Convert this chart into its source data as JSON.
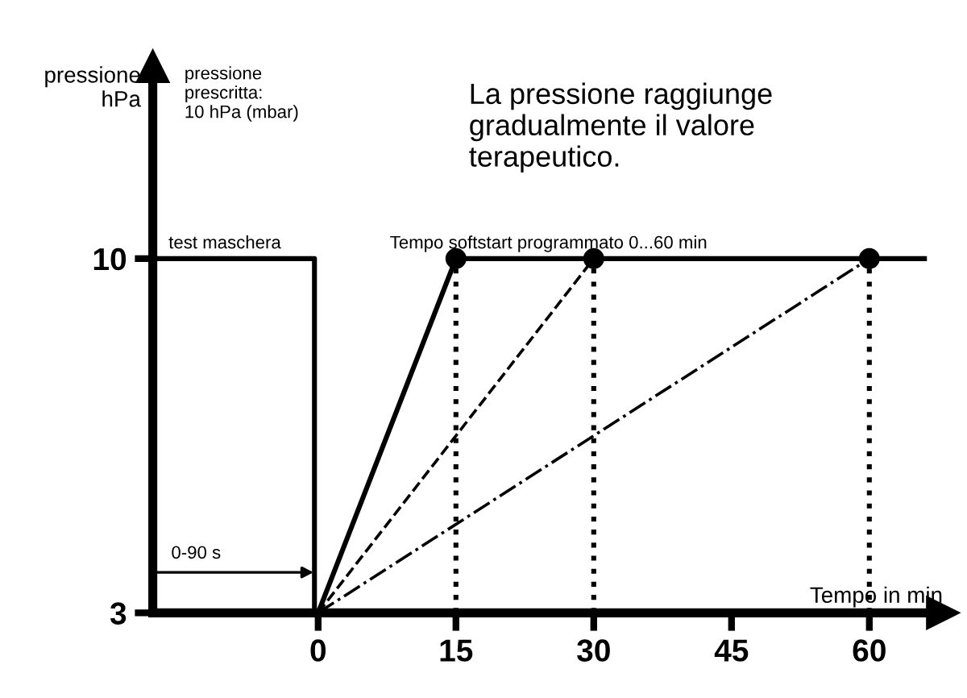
{
  "chart_data": {
    "type": "line",
    "ylabel": "pressione\nhPa",
    "xlabel": "Tempo in min",
    "xlim": [
      -18,
      68
    ],
    "ylim": [
      3,
      13.8
    ],
    "xticks": [
      0,
      15,
      30,
      45,
      60
    ],
    "yticks": [
      3,
      10
    ],
    "grid": false,
    "series": [
      {
        "color": "#000000",
        "line_style": "solid",
        "x": [
          -18,
          -0.4,
          -0.4
        ],
        "values": [
          10,
          10,
          3
        ]
      },
      {
        "color": "#000000",
        "line_style": "solid",
        "x": [
          0,
          15,
          66
        ],
        "values": [
          3,
          10,
          10
        ]
      },
      {
        "color": "#000000",
        "line_style": "dashed",
        "x": [
          0,
          30
        ],
        "values": [
          3,
          10
        ]
      },
      {
        "color": "#000000",
        "line_style": "dashdot",
        "x": [
          0,
          60
        ],
        "values": [
          3,
          10
        ]
      },
      {
        "type": "scatter",
        "color": "#000000",
        "marker": "circle",
        "x": [
          15,
          30,
          60
        ],
        "values": [
          10,
          10,
          10
        ]
      }
    ],
    "ref_lines": [
      {
        "axis": "x",
        "value": 15,
        "line_style": "dotted",
        "color": "#000000"
      },
      {
        "axis": "x",
        "value": 30,
        "line_style": "dotted",
        "color": "#000000"
      },
      {
        "axis": "x",
        "value": 60,
        "line_style": "dotted",
        "color": "#000000"
      }
    ],
    "annotations": [
      "pressione\nprescritta:\n10 hPa (mbar)",
      "La pressione raggiunge\ngradualmente il valore\nterapeutico.",
      "test maschera",
      "Tempo softstart programmato 0...60 min",
      {
        "text": "0-90 s",
        "x": 0,
        "y": 3.8
      }
    ]
  }
}
